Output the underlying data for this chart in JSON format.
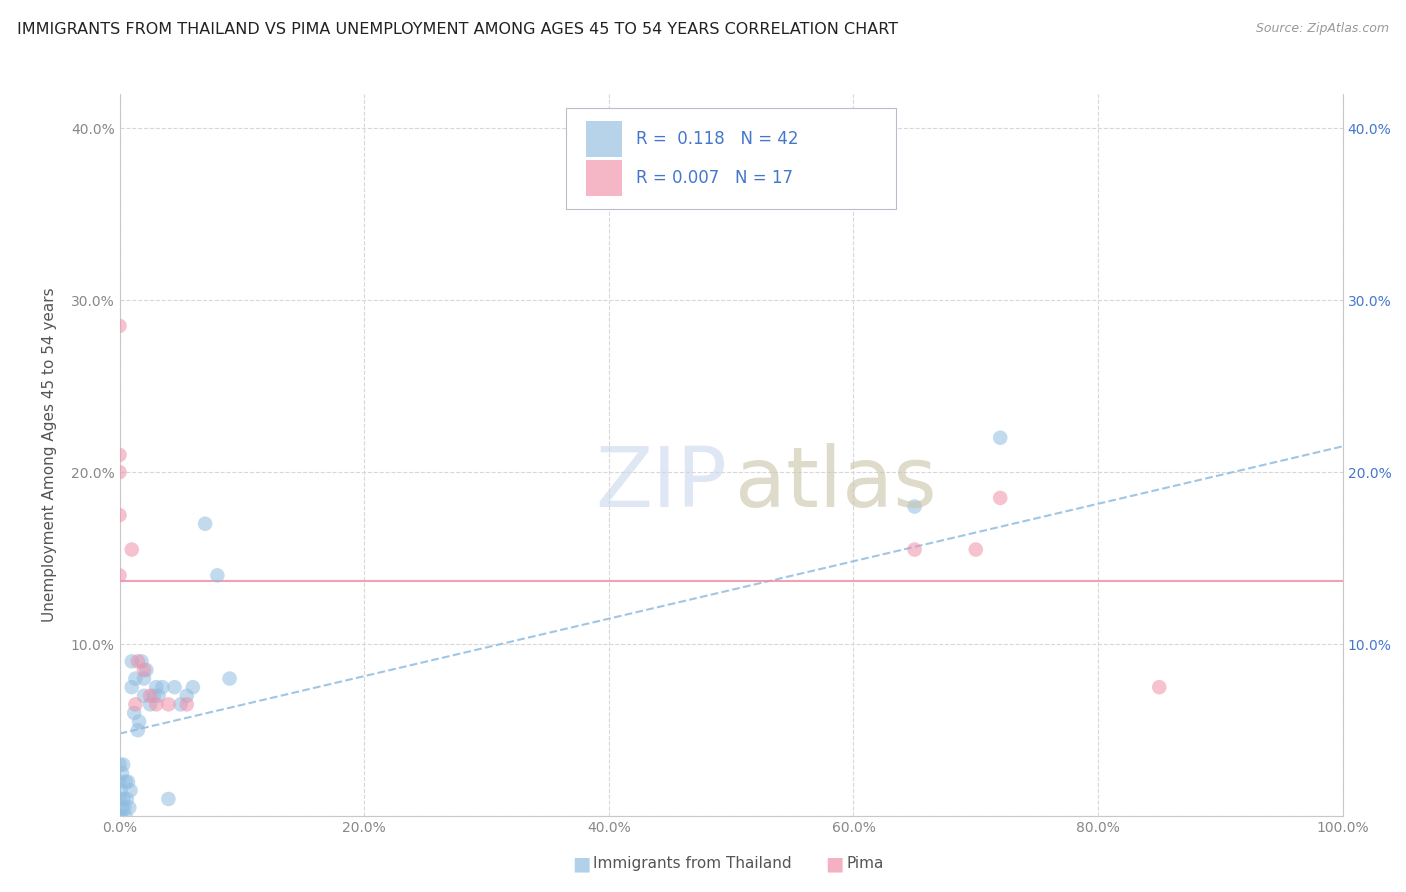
{
  "title": "IMMIGRANTS FROM THAILAND VS PIMA UNEMPLOYMENT AMONG AGES 45 TO 54 YEARS CORRELATION CHART",
  "source": "Source: ZipAtlas.com",
  "ylabel": "Unemployment Among Ages 45 to 54 years",
  "xlim": [
    0.0,
    1.0
  ],
  "ylim": [
    0.0,
    0.42
  ],
  "xticks": [
    0.0,
    0.2,
    0.4,
    0.6,
    0.8,
    1.0
  ],
  "xticklabels": [
    "0.0%",
    "20.0%",
    "40.0%",
    "60.0%",
    "80.0%",
    "100.0%"
  ],
  "yticks": [
    0.0,
    0.1,
    0.2,
    0.3,
    0.4
  ],
  "yticklabels_left": [
    "",
    "10.0%",
    "20.0%",
    "30.0%",
    "40.0%"
  ],
  "yticklabels_right": [
    "",
    "10.0%",
    "20.0%",
    "30.0%",
    "40.0%"
  ],
  "R_blue": "0.118",
  "N_blue": "42",
  "R_pink": "0.007",
  "N_pink": "17",
  "blue_color": "#90bce0",
  "pink_color": "#f090a8",
  "blue_trend_x": [
    0.0,
    1.0
  ],
  "blue_trend_y": [
    0.048,
    0.215
  ],
  "pink_trend_y": 0.137,
  "blue_x": [
    0.0,
    0.0,
    0.0,
    0.0,
    0.001,
    0.001,
    0.002,
    0.002,
    0.003,
    0.003,
    0.004,
    0.005,
    0.005,
    0.006,
    0.007,
    0.008,
    0.009,
    0.01,
    0.01,
    0.012,
    0.013,
    0.015,
    0.016,
    0.018,
    0.02,
    0.02,
    0.022,
    0.025,
    0.028,
    0.03,
    0.032,
    0.035,
    0.04,
    0.045,
    0.05,
    0.055,
    0.06,
    0.07,
    0.08,
    0.09,
    0.65,
    0.72
  ],
  "blue_y": [
    0.0,
    0.01,
    0.02,
    0.03,
    0.0,
    0.015,
    0.005,
    0.025,
    0.01,
    0.03,
    0.005,
    0.0,
    0.02,
    0.01,
    0.02,
    0.005,
    0.015,
    0.075,
    0.09,
    0.06,
    0.08,
    0.05,
    0.055,
    0.09,
    0.07,
    0.08,
    0.085,
    0.065,
    0.07,
    0.075,
    0.07,
    0.075,
    0.01,
    0.075,
    0.065,
    0.07,
    0.075,
    0.17,
    0.14,
    0.08,
    0.18,
    0.22
  ],
  "pink_x": [
    0.0,
    0.0,
    0.0,
    0.0,
    0.0,
    0.01,
    0.013,
    0.015,
    0.02,
    0.025,
    0.03,
    0.04,
    0.055,
    0.65,
    0.7,
    0.72,
    0.85
  ],
  "pink_y": [
    0.285,
    0.21,
    0.2,
    0.175,
    0.14,
    0.155,
    0.065,
    0.09,
    0.085,
    0.07,
    0.065,
    0.065,
    0.065,
    0.155,
    0.155,
    0.185,
    0.075
  ],
  "background_color": "#ffffff",
  "grid_color": "#d8d8d8",
  "title_fontsize": 11.5,
  "tick_fontsize": 10,
  "ylabel_fontsize": 11,
  "marker_size": 110,
  "marker_alpha": 0.55,
  "legend_R_eq_color": "#333333",
  "legend_num_color": "#4477cc",
  "right_tick_color": "#4477cc",
  "watermark_zip_color": "#c8d8ec",
  "watermark_atlas_color": "#c8c4a8"
}
